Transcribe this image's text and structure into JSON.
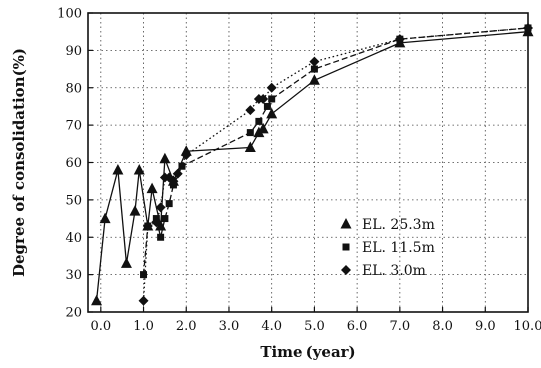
{
  "chart_data": {
    "type": "line",
    "title": "",
    "xlabel": "Time (year)",
    "ylabel": "Degree of consolidation(%)",
    "xlim": [
      -0.3,
      10.0
    ],
    "ylim": [
      20,
      100
    ],
    "x_ticks": [
      0.0,
      1.0,
      2.0,
      3.0,
      4.0,
      5.0,
      6.0,
      7.0,
      8.0,
      9.0,
      10.0
    ],
    "x_tick_labels": [
      "0.0",
      "1.0",
      "2.0",
      "3.0",
      "4.0",
      "5.0",
      "6.0",
      "7.0",
      "8.0",
      "9.0",
      "10.0"
    ],
    "y_ticks": [
      20,
      30,
      40,
      50,
      60,
      70,
      80,
      90,
      100
    ],
    "y_tick_labels": [
      "20",
      "30",
      "40",
      "50",
      "60",
      "70",
      "80",
      "90",
      "100"
    ],
    "grid": true,
    "legend_position": "right",
    "series": [
      {
        "name": "EL. 25.3m",
        "marker": "triangle",
        "line_style": "solid",
        "color": "#111111",
        "x": [
          -0.1,
          0.1,
          0.4,
          0.6,
          0.8,
          0.9,
          1.1,
          1.2,
          1.4,
          1.5,
          1.7,
          2.0,
          3.5,
          3.7,
          3.8,
          4.0,
          5.0,
          7.0,
          10.0
        ],
        "y": [
          23,
          45,
          58,
          33,
          47,
          58,
          43,
          53,
          43,
          61,
          55,
          63,
          64,
          68,
          69,
          73,
          82,
          92,
          95
        ]
      },
      {
        "name": "EL. 11.5m",
        "marker": "square",
        "line_style": "dashed",
        "color": "#111111",
        "x": [
          1.0,
          1.1,
          1.3,
          1.4,
          1.5,
          1.6,
          1.7,
          1.9,
          3.5,
          3.7,
          3.9,
          4.0,
          5.0,
          7.0,
          10.0
        ],
        "y": [
          30,
          43,
          45,
          40,
          45,
          49,
          54,
          59,
          68,
          71,
          75,
          77,
          85,
          93,
          96
        ]
      },
      {
        "name": "EL. 3.0m",
        "marker": "diamond",
        "line_style": "dotted",
        "color": "#111111",
        "x": [
          1.0,
          1.1,
          1.3,
          1.4,
          1.5,
          1.6,
          1.7,
          1.8,
          2.0,
          3.5,
          3.7,
          3.8,
          4.0,
          5.0,
          7.0,
          10.0
        ],
        "y": [
          23,
          43,
          44,
          48,
          56,
          56,
          55,
          57,
          62,
          74,
          77,
          77,
          80,
          87,
          93,
          96
        ]
      }
    ]
  }
}
